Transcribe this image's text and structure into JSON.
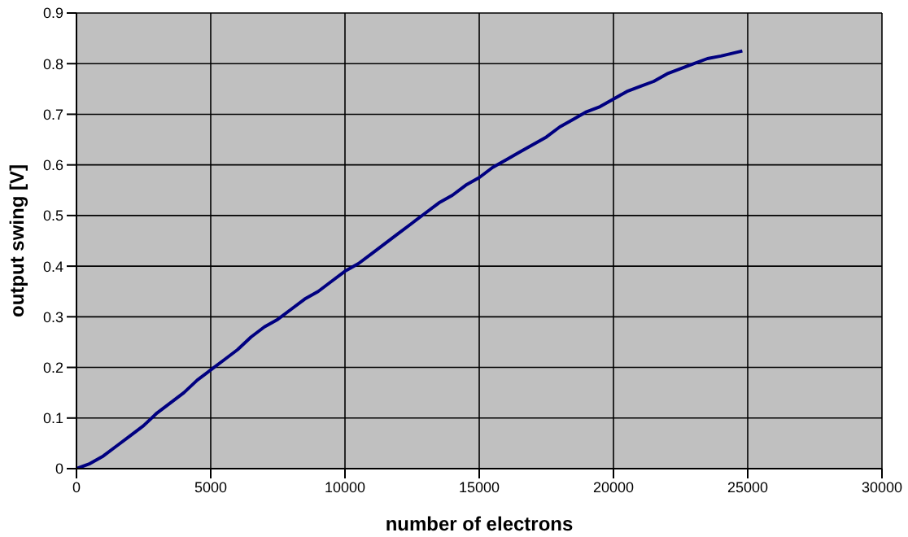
{
  "chart_data": {
    "type": "line",
    "xlabel": "number of electrons",
    "ylabel": "output swing [V]",
    "x": [
      0,
      500,
      1000,
      1500,
      2000,
      2500,
      3000,
      3500,
      4000,
      4500,
      5000,
      5500,
      6000,
      6500,
      7000,
      7500,
      8000,
      8500,
      9000,
      9500,
      10000,
      10500,
      11000,
      11500,
      12000,
      12500,
      13000,
      13500,
      14000,
      14500,
      15000,
      15500,
      16000,
      16500,
      17000,
      17500,
      18000,
      18500,
      19000,
      19500,
      20000,
      20500,
      21000,
      21500,
      22000,
      22500,
      23000,
      23500,
      24000,
      24800
    ],
    "series": [
      {
        "color": "#000080",
        "values": [
          0,
          0.01,
          0.025,
          0.045,
          0.065,
          0.085,
          0.11,
          0.13,
          0.15,
          0.175,
          0.195,
          0.215,
          0.235,
          0.26,
          0.28,
          0.295,
          0.315,
          0.335,
          0.35,
          0.37,
          0.39,
          0.405,
          0.425,
          0.445,
          0.465,
          0.485,
          0.505,
          0.525,
          0.54,
          0.56,
          0.575,
          0.595,
          0.61,
          0.625,
          0.64,
          0.655,
          0.675,
          0.69,
          0.705,
          0.715,
          0.73,
          0.745,
          0.755,
          0.765,
          0.78,
          0.79,
          0.8,
          0.81,
          0.815,
          0.825
        ]
      }
    ],
    "xlim": [
      0,
      30000
    ],
    "xticks": [
      0,
      5000,
      10000,
      15000,
      20000,
      25000,
      30000
    ],
    "ylim": [
      0,
      0.9
    ],
    "yticks": [
      0,
      0.1,
      0.2,
      0.3,
      0.4,
      0.5,
      0.6,
      0.7,
      0.8,
      0.9
    ],
    "grid": true,
    "legend": false,
    "marker": "none",
    "line_style": "solid"
  }
}
